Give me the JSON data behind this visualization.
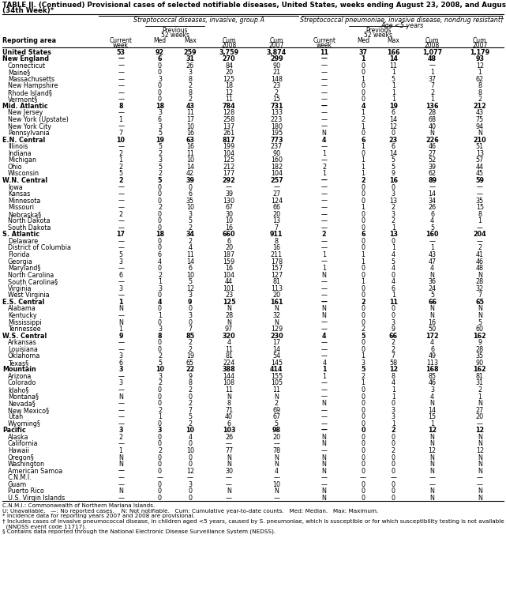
{
  "title_line1": "TABLE II. (Continued) Provisional cases of selected notifiable diseases, United States, weeks ending August 23, 2008, and August 25, 2007",
  "title_line2": "(34th Week)*",
  "col_header_1": "Streptococcal diseases, invasive, group A",
  "col_header_2a": "Streptococcal pneumoniae, invasive disease, nondrug resistant†",
  "col_header_2b": "Age <5 years",
  "rows": [
    [
      "United States",
      "53",
      "92",
      "259",
      "3,759",
      "3,874",
      "11",
      "37",
      "166",
      "1,077",
      "1,179"
    ],
    [
      "New England",
      "—",
      "6",
      "31",
      "270",
      "299",
      "—",
      "1",
      "14",
      "48",
      "93"
    ],
    [
      "Connecticut",
      "—",
      "0",
      "26",
      "84",
      "90",
      "—",
      "0",
      "11",
      "—",
      "12"
    ],
    [
      "Maine§",
      "—",
      "0",
      "3",
      "20",
      "21",
      "—",
      "0",
      "1",
      "1",
      "1"
    ],
    [
      "Massachusetts",
      "—",
      "3",
      "8",
      "125",
      "148",
      "—",
      "1",
      "5",
      "37",
      "62"
    ],
    [
      "New Hampshire",
      "—",
      "0",
      "2",
      "18",
      "23",
      "—",
      "0",
      "1",
      "7",
      "8"
    ],
    [
      "Rhode Island§",
      "—",
      "0",
      "8",
      "12",
      "2",
      "—",
      "0",
      "1",
      "2",
      "8"
    ],
    [
      "Vermont§",
      "—",
      "0",
      "2",
      "11",
      "15",
      "—",
      "0",
      "1",
      "1",
      "2"
    ],
    [
      "Mid. Atlantic",
      "8",
      "18",
      "43",
      "784",
      "731",
      "—",
      "4",
      "19",
      "136",
      "212"
    ],
    [
      "New Jersey",
      "—",
      "3",
      "11",
      "128",
      "133",
      "—",
      "1",
      "6",
      "28",
      "43"
    ],
    [
      "New York (Upstate)",
      "1",
      "6",
      "17",
      "258",
      "223",
      "—",
      "2",
      "14",
      "68",
      "75"
    ],
    [
      "New York City",
      "—",
      "3",
      "10",
      "137",
      "180",
      "—",
      "1",
      "12",
      "40",
      "94"
    ],
    [
      "Pennsylvania",
      "7",
      "5",
      "16",
      "261",
      "195",
      "N",
      "0",
      "0",
      "N",
      "N"
    ],
    [
      "E.N. Central",
      "10",
      "19",
      "63",
      "817",
      "773",
      "4",
      "6",
      "23",
      "226",
      "210"
    ],
    [
      "Illinois",
      "—",
      "5",
      "16",
      "199",
      "237",
      "—",
      "1",
      "6",
      "46",
      "51"
    ],
    [
      "Indiana",
      "2",
      "2",
      "11",
      "104",
      "90",
      "1",
      "0",
      "14",
      "27",
      "13"
    ],
    [
      "Michigan",
      "1",
      "3",
      "10",
      "125",
      "160",
      "—",
      "1",
      "5",
      "52",
      "57"
    ],
    [
      "Ohio",
      "2",
      "5",
      "14",
      "212",
      "182",
      "2",
      "1",
      "5",
      "39",
      "44"
    ],
    [
      "Wisconsin",
      "5",
      "2",
      "42",
      "177",
      "104",
      "1",
      "1",
      "9",
      "62",
      "45"
    ],
    [
      "W.N. Central",
      "2",
      "5",
      "39",
      "292",
      "257",
      "—",
      "2",
      "16",
      "89",
      "59"
    ],
    [
      "Iowa",
      "—",
      "0",
      "0",
      "—",
      "—",
      "—",
      "0",
      "0",
      "—",
      "—"
    ],
    [
      "Kansas",
      "—",
      "0",
      "6",
      "39",
      "27",
      "—",
      "0",
      "3",
      "14",
      "—"
    ],
    [
      "Minnesota",
      "—",
      "0",
      "35",
      "130",
      "124",
      "—",
      "0",
      "13",
      "34",
      "35"
    ],
    [
      "Missouri",
      "—",
      "2",
      "10",
      "67",
      "66",
      "—",
      "1",
      "2",
      "26",
      "15"
    ],
    [
      "Nebraska§",
      "2",
      "0",
      "3",
      "30",
      "20",
      "—",
      "0",
      "3",
      "6",
      "8"
    ],
    [
      "North Dakota",
      "—",
      "0",
      "5",
      "10",
      "13",
      "—",
      "0",
      "2",
      "4",
      "1"
    ],
    [
      "South Dakota",
      "—",
      "0",
      "2",
      "16",
      "7",
      "—",
      "0",
      "1",
      "5",
      "—"
    ],
    [
      "S. Atlantic",
      "17",
      "18",
      "34",
      "660",
      "911",
      "2",
      "6",
      "13",
      "160",
      "204"
    ],
    [
      "Delaware",
      "—",
      "0",
      "2",
      "6",
      "8",
      "—",
      "0",
      "0",
      "—",
      "—"
    ],
    [
      "District of Columbia",
      "—",
      "0",
      "4",
      "20",
      "16",
      "—",
      "0",
      "1",
      "1",
      "2"
    ],
    [
      "Florida",
      "5",
      "6",
      "11",
      "187",
      "211",
      "1",
      "1",
      "4",
      "43",
      "41"
    ],
    [
      "Georgia",
      "3",
      "4",
      "14",
      "159",
      "178",
      "—",
      "1",
      "5",
      "47",
      "46"
    ],
    [
      "Maryland§",
      "—",
      "0",
      "6",
      "16",
      "157",
      "1",
      "0",
      "4",
      "4",
      "48"
    ],
    [
      "North Carolina",
      "6",
      "2",
      "10",
      "104",
      "127",
      "N",
      "0",
      "0",
      "N",
      "N"
    ],
    [
      "South Carolina§",
      "—",
      "1",
      "5",
      "44",
      "81",
      "—",
      "1",
      "4",
      "36",
      "28"
    ],
    [
      "Virginia",
      "3",
      "3",
      "12",
      "101",
      "113",
      "—",
      "0",
      "6",
      "24",
      "32"
    ],
    [
      "West Virginia",
      "—",
      "0",
      "3",
      "23",
      "20",
      "—",
      "0",
      "1",
      "5",
      "7"
    ],
    [
      "E.S. Central",
      "1",
      "4",
      "9",
      "125",
      "161",
      "—",
      "2",
      "11",
      "66",
      "65"
    ],
    [
      "Alabama",
      "N",
      "0",
      "0",
      "N",
      "N",
      "N",
      "0",
      "0",
      "N",
      "N"
    ],
    [
      "Kentucky",
      "—",
      "1",
      "3",
      "28",
      "32",
      "N",
      "0",
      "0",
      "N",
      "N"
    ],
    [
      "Mississippi",
      "N",
      "0",
      "0",
      "N",
      "N",
      "—",
      "0",
      "3",
      "16",
      "5"
    ],
    [
      "Tennessee",
      "1",
      "3",
      "7",
      "97",
      "129",
      "—",
      "2",
      "9",
      "50",
      "60"
    ],
    [
      "W.S. Central",
      "9",
      "8",
      "85",
      "320",
      "230",
      "4",
      "5",
      "66",
      "172",
      "162"
    ],
    [
      "Arkansas",
      "—",
      "0",
      "2",
      "4",
      "17",
      "—",
      "0",
      "2",
      "4",
      "9"
    ],
    [
      "Louisiana",
      "—",
      "0",
      "2",
      "11",
      "14",
      "—",
      "0",
      "2",
      "6",
      "28"
    ],
    [
      "Oklahoma",
      "3",
      "2",
      "19",
      "81",
      "54",
      "—",
      "1",
      "7",
      "49",
      "35"
    ],
    [
      "Texas§",
      "6",
      "5",
      "65",
      "224",
      "145",
      "4",
      "3",
      "58",
      "113",
      "90"
    ],
    [
      "Mountain",
      "3",
      "10",
      "22",
      "388",
      "414",
      "1",
      "5",
      "12",
      "168",
      "162"
    ],
    [
      "Arizona",
      "—",
      "3",
      "9",
      "144",
      "155",
      "1",
      "2",
      "8",
      "85",
      "81"
    ],
    [
      "Colorado",
      "3",
      "2",
      "8",
      "108",
      "105",
      "—",
      "1",
      "4",
      "46",
      "31"
    ],
    [
      "Idaho§",
      "—",
      "0",
      "2",
      "11",
      "11",
      "—",
      "0",
      "1",
      "3",
      "2"
    ],
    [
      "Montana§",
      "N",
      "0",
      "0",
      "N",
      "N",
      "—",
      "0",
      "1",
      "4",
      "1"
    ],
    [
      "Nevada§",
      "—",
      "0",
      "2",
      "8",
      "2",
      "N",
      "0",
      "0",
      "N",
      "N"
    ],
    [
      "New Mexico§",
      "—",
      "2",
      "7",
      "71",
      "69",
      "—",
      "0",
      "3",
      "14",
      "27"
    ],
    [
      "Utah",
      "—",
      "1",
      "5",
      "40",
      "67",
      "—",
      "0",
      "3",
      "15",
      "20"
    ],
    [
      "Wyoming§",
      "—",
      "0",
      "2",
      "6",
      "5",
      "—",
      "0",
      "1",
      "1",
      "—"
    ],
    [
      "Pacific",
      "3",
      "3",
      "10",
      "103",
      "98",
      "—",
      "0",
      "2",
      "12",
      "12"
    ],
    [
      "Alaska",
      "2",
      "0",
      "4",
      "26",
      "20",
      "N",
      "0",
      "0",
      "N",
      "N"
    ],
    [
      "California",
      "—",
      "0",
      "0",
      "—",
      "—",
      "N",
      "0",
      "0",
      "N",
      "N"
    ],
    [
      "Hawaii",
      "1",
      "2",
      "10",
      "77",
      "78",
      "—",
      "0",
      "2",
      "12",
      "12"
    ],
    [
      "Oregon§",
      "N",
      "0",
      "0",
      "N",
      "N",
      "N",
      "0",
      "0",
      "N",
      "N"
    ],
    [
      "Washington",
      "N",
      "0",
      "0",
      "N",
      "N",
      "N",
      "0",
      "0",
      "N",
      "N"
    ],
    [
      "American Samoa",
      "—",
      "0",
      "12",
      "30",
      "4",
      "N",
      "0",
      "0",
      "N",
      "N"
    ],
    [
      "C.N.M.I.",
      "—",
      "—",
      "—",
      "—",
      "—",
      "—",
      "—",
      "—",
      "—",
      "—"
    ],
    [
      "Guam",
      "—",
      "0",
      "3",
      "—",
      "10",
      "—",
      "0",
      "0",
      "—",
      "—"
    ],
    [
      "Puerto Rico",
      "N",
      "0",
      "0",
      "N",
      "N",
      "N",
      "0",
      "0",
      "N",
      "N"
    ],
    [
      "U.S. Virgin Islands",
      "—",
      "0",
      "0",
      "—",
      "—",
      "N",
      "0",
      "0",
      "N",
      "N"
    ]
  ],
  "bold_rows": [
    0,
    1,
    8,
    13,
    19,
    27,
    37,
    42,
    47,
    56
  ],
  "footnotes": [
    "C.N.M.I.: Commonwealth of Northern Mariana Islands.",
    "U: Unavailable.   —: No reported cases.    N: Not notifiable.   Cum: Cumulative year-to-date counts.   Med: Median.   Max: Maximum.",
    "* Incidence data for reporting years 2007 and 2008 are provisional.",
    "† Includes cases of invasive pneumococcal disease, in children aged <5 years, caused by S. pneumoniae, which is susceptible or for which susceptibility testing is not available",
    "  (NNDSS event code 11717).",
    "§ Contains data reported through the National Electronic Disease Surveillance System (NEDSS)."
  ]
}
